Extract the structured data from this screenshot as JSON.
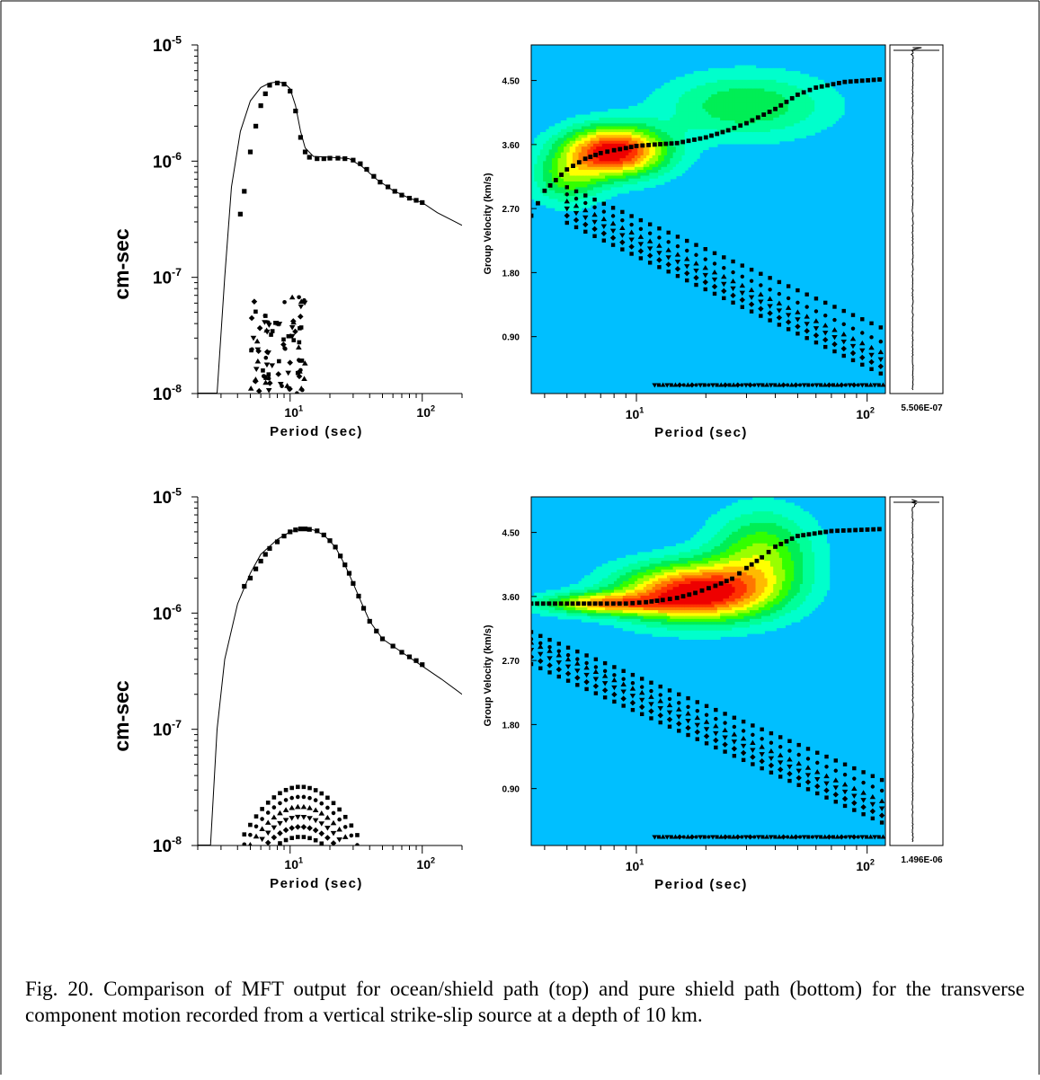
{
  "figure": {
    "caption": "Fig. 20. Comparison of MFT output for ocean/shield path (top) and pure shield path (bottom) for the transverse component motion recorded from a vertical strike-slip source at a depth of 10 km."
  },
  "colors": {
    "background": "#00bfff",
    "contour_levels": [
      "#00ffcc",
      "#00ff99",
      "#00ee55",
      "#33ff00",
      "#99ff00",
      "#ffff00",
      "#ffbb00",
      "#ff7700",
      "#ff3300",
      "#ee0000"
    ]
  },
  "chart_data": [
    {
      "panel": "top-left",
      "type": "scatter",
      "xlabel": "Period (sec)",
      "ylabel": "cm-sec",
      "xscale": "log",
      "yscale": "log",
      "xlim": [
        2,
        200
      ],
      "ylim": [
        1e-08,
        1e-05
      ],
      "xticks": [
        {
          "v": 10,
          "base": "10",
          "exp": "1"
        },
        {
          "v": 100,
          "base": "10",
          "exp": "2"
        }
      ],
      "yticks": [
        {
          "v": 1e-05,
          "base": "10",
          "exp": "-5"
        },
        {
          "v": 1e-06,
          "base": "10",
          "exp": "-6"
        },
        {
          "v": 1e-07,
          "base": "10",
          "exp": "-7"
        },
        {
          "v": 1e-08,
          "base": "10",
          "exp": "-8"
        }
      ],
      "curve": [
        [
          2.8,
          1e-08
        ],
        [
          3.2,
          1e-07
        ],
        [
          3.6,
          6e-07
        ],
        [
          4.2,
          1.8e-06
        ],
        [
          5,
          3.3e-06
        ],
        [
          6,
          4.3e-06
        ],
        [
          7,
          4.7e-06
        ],
        [
          8,
          4.8e-06
        ],
        [
          9,
          4.7e-06
        ],
        [
          10,
          4.2e-06
        ],
        [
          11,
          3e-06
        ],
        [
          12,
          1.8e-06
        ],
        [
          13,
          1.3e-06
        ],
        [
          15,
          1.1e-06
        ],
        [
          20,
          1.08e-06
        ],
        [
          28,
          1.05e-06
        ],
        [
          35,
          9e-07
        ],
        [
          45,
          7e-07
        ],
        [
          60,
          5.6e-07
        ],
        [
          80,
          4.8e-07
        ],
        [
          100,
          4.4e-07
        ],
        [
          130,
          3.6e-07
        ],
        [
          200,
          2.8e-07
        ]
      ],
      "fundamental": [
        [
          4.2,
          3.5e-07
        ],
        [
          4.5,
          5.5e-07
        ],
        [
          5,
          1.2e-06
        ],
        [
          5.5,
          2e-06
        ],
        [
          6,
          3e-06
        ],
        [
          6.5,
          3.8e-06
        ],
        [
          7,
          4.5e-06
        ],
        [
          8,
          4.7e-06
        ],
        [
          9,
          4.6e-06
        ],
        [
          10,
          4e-06
        ],
        [
          11,
          2.7e-06
        ],
        [
          12,
          1.6e-06
        ],
        [
          13,
          1.2e-06
        ],
        [
          14,
          1.08e-06
        ],
        [
          16,
          1.05e-06
        ],
        [
          18,
          1.05e-06
        ],
        [
          20,
          1.06e-06
        ],
        [
          23,
          1.06e-06
        ],
        [
          26,
          1.05e-06
        ],
        [
          30,
          1.02e-06
        ],
        [
          34,
          9.5e-07
        ],
        [
          38,
          8.5e-07
        ],
        [
          43,
          7.4e-07
        ],
        [
          48,
          6.6e-07
        ],
        [
          55,
          6e-07
        ],
        [
          62,
          5.5e-07
        ],
        [
          70,
          5.1e-07
        ],
        [
          80,
          4.8e-07
        ],
        [
          90,
          4.6e-07
        ],
        [
          100,
          4.4e-07
        ]
      ],
      "overtones": {
        "xrange": [
          5,
          13
        ],
        "ymax": 7e-08,
        "ymin": 1e-08,
        "count": 90
      }
    },
    {
      "panel": "top-right",
      "type": "heatmap",
      "xlabel": "Period (sec)",
      "ylabel": "Group Velocity (km/s)",
      "xscale": "log",
      "xlim": [
        3.5,
        120
      ],
      "ylim": [
        0.1,
        5.0
      ],
      "xticks": [
        {
          "v": 10,
          "base": "10",
          "exp": "1"
        },
        {
          "v": 100,
          "base": "10",
          "exp": "2"
        }
      ],
      "yticks": [
        {
          "v": 0.9,
          "label": "0.90"
        },
        {
          "v": 1.8,
          "label": "1.80"
        },
        {
          "v": 2.7,
          "label": "2.70"
        },
        {
          "v": 3.6,
          "label": "3.60"
        },
        {
          "v": 4.5,
          "label": "4.50"
        }
      ],
      "seismogram_label": "5.506E-07",
      "dispersion": [
        [
          3.5,
          2.6
        ],
        [
          4,
          2.95
        ],
        [
          5,
          3.25
        ],
        [
          6,
          3.4
        ],
        [
          7,
          3.48
        ],
        [
          8,
          3.52
        ],
        [
          9,
          3.55
        ],
        [
          10,
          3.58
        ],
        [
          12,
          3.6
        ],
        [
          15,
          3.62
        ],
        [
          20,
          3.7
        ],
        [
          25,
          3.8
        ],
        [
          30,
          3.9
        ],
        [
          40,
          4.1
        ],
        [
          50,
          4.3
        ],
        [
          60,
          4.4
        ],
        [
          80,
          4.48
        ],
        [
          120,
          4.52
        ]
      ],
      "energy_peaks": [
        {
          "p": 8,
          "v": 3.5,
          "amp": 1.0,
          "sp": 0.22,
          "sv": 0.35
        },
        {
          "p": 30,
          "v": 4.15,
          "amp": 0.35,
          "sp": 0.35,
          "sv": 0.45
        },
        {
          "p": 5,
          "v": 3.1,
          "amp": 0.35,
          "sp": 0.15,
          "sv": 0.35
        }
      ],
      "overtone_lines": [
        {
          "p0": 5,
          "v0": 3.0,
          "p1": 120,
          "v1": 1.0
        },
        {
          "p0": 5,
          "v0": 2.9,
          "p1": 120,
          "v1": 0.8
        },
        {
          "p0": 5,
          "v0": 2.8,
          "p1": 120,
          "v1": 0.65
        },
        {
          "p0": 5,
          "v0": 2.7,
          "p1": 120,
          "v1": 0.55
        },
        {
          "p0": 5,
          "v0": 2.6,
          "p1": 120,
          "v1": 0.45
        },
        {
          "p0": 5,
          "v0": 2.5,
          "p1": 120,
          "v1": 0.35
        }
      ],
      "baseline_v": 0.22
    },
    {
      "panel": "bottom-left",
      "type": "scatter",
      "xlabel": "Period (sec)",
      "ylabel": "cm-sec",
      "xscale": "log",
      "yscale": "log",
      "xlim": [
        2,
        200
      ],
      "ylim": [
        1e-08,
        1e-05
      ],
      "xticks": [
        {
          "v": 10,
          "base": "10",
          "exp": "1"
        },
        {
          "v": 100,
          "base": "10",
          "exp": "2"
        }
      ],
      "yticks": [
        {
          "v": 1e-05,
          "base": "10",
          "exp": "-5"
        },
        {
          "v": 1e-06,
          "base": "10",
          "exp": "-6"
        },
        {
          "v": 1e-07,
          "base": "10",
          "exp": "-7"
        },
        {
          "v": 1e-08,
          "base": "10",
          "exp": "-8"
        }
      ],
      "curve": [
        [
          2.5,
          1e-08
        ],
        [
          2.8,
          1e-07
        ],
        [
          3.2,
          4e-07
        ],
        [
          4,
          1.2e-06
        ],
        [
          5,
          2.2e-06
        ],
        [
          6,
          3.2e-06
        ],
        [
          8,
          4.3e-06
        ],
        [
          10,
          5e-06
        ],
        [
          12,
          5.3e-06
        ],
        [
          15,
          5.2e-06
        ],
        [
          18,
          4.7e-06
        ],
        [
          22,
          3.7e-06
        ],
        [
          26,
          2.6e-06
        ],
        [
          30,
          1.8e-06
        ],
        [
          35,
          1.2e-06
        ],
        [
          40,
          8.5e-07
        ],
        [
          50,
          6e-07
        ],
        [
          70,
          4.6e-07
        ],
        [
          100,
          3.5e-07
        ],
        [
          140,
          2.7e-07
        ],
        [
          200,
          2e-07
        ]
      ],
      "fundamental": [
        [
          4.5,
          1.7e-06
        ],
        [
          5,
          2e-06
        ],
        [
          5.5,
          2.4e-06
        ],
        [
          6,
          2.8e-06
        ],
        [
          6.5,
          3.2e-06
        ],
        [
          7,
          3.6e-06
        ],
        [
          8,
          4.1e-06
        ],
        [
          9,
          4.6e-06
        ],
        [
          10,
          5e-06
        ],
        [
          11,
          5.2e-06
        ],
        [
          12,
          5.3e-06
        ],
        [
          13,
          5.3e-06
        ],
        [
          14,
          5.25e-06
        ],
        [
          16,
          5.1e-06
        ],
        [
          18,
          4.7e-06
        ],
        [
          20,
          4.2e-06
        ],
        [
          22,
          3.7e-06
        ],
        [
          24,
          3.1e-06
        ],
        [
          26,
          2.6e-06
        ],
        [
          28,
          2.2e-06
        ],
        [
          30,
          1.8e-06
        ],
        [
          33,
          1.4e-06
        ],
        [
          36,
          1.1e-06
        ],
        [
          40,
          8.5e-07
        ],
        [
          45,
          7e-07
        ],
        [
          50,
          6e-07
        ],
        [
          60,
          5.2e-07
        ],
        [
          70,
          4.6e-07
        ],
        [
          80,
          4.2e-07
        ],
        [
          90,
          3.9e-07
        ],
        [
          100,
          3.6e-07
        ]
      ],
      "overtones": {
        "xrange": [
          4.5,
          50
        ],
        "ymax": 3.2e-08,
        "ymin": 1e-08,
        "count": 8,
        "peak": 12
      }
    },
    {
      "panel": "bottom-right",
      "type": "heatmap",
      "xlabel": "Period (sec)",
      "ylabel": "Group Velocity (km/s)",
      "xscale": "log",
      "xlim": [
        3.5,
        120
      ],
      "ylim": [
        0.1,
        5.0
      ],
      "xticks": [
        {
          "v": 10,
          "base": "10",
          "exp": "1"
        },
        {
          "v": 100,
          "base": "10",
          "exp": "2"
        }
      ],
      "yticks": [
        {
          "v": 0.9,
          "label": "0.90"
        },
        {
          "v": 1.8,
          "label": "1.80"
        },
        {
          "v": 2.7,
          "label": "2.70"
        },
        {
          "v": 3.6,
          "label": "3.60"
        },
        {
          "v": 4.5,
          "label": "4.50"
        }
      ],
      "seismogram_label": "1.496E-06",
      "dispersion": [
        [
          3.5,
          3.5
        ],
        [
          5,
          3.5
        ],
        [
          7,
          3.5
        ],
        [
          9,
          3.5
        ],
        [
          11,
          3.52
        ],
        [
          13,
          3.55
        ],
        [
          15,
          3.58
        ],
        [
          18,
          3.65
        ],
        [
          22,
          3.75
        ],
        [
          26,
          3.85
        ],
        [
          30,
          4.0
        ],
        [
          35,
          4.15
        ],
        [
          40,
          4.3
        ],
        [
          50,
          4.45
        ],
        [
          70,
          4.52
        ],
        [
          120,
          4.55
        ]
      ],
      "energy_peaks": [
        {
          "p": 18,
          "v": 3.65,
          "amp": 1.0,
          "sp": 0.32,
          "sv": 0.4
        },
        {
          "p": 7,
          "v": 3.5,
          "amp": 0.6,
          "sp": 0.25,
          "sv": 0.15
        },
        {
          "p": 35,
          "v": 4.2,
          "amp": 0.45,
          "sp": 0.22,
          "sv": 0.6
        }
      ],
      "overtone_lines": [
        {
          "p0": 3.5,
          "v0": 3.1,
          "p1": 120,
          "v1": 1.0
        },
        {
          "p0": 3.5,
          "v0": 3.0,
          "p1": 120,
          "v1": 0.85
        },
        {
          "p0": 3.5,
          "v0": 2.95,
          "p1": 120,
          "v1": 0.7
        },
        {
          "p0": 3.5,
          "v0": 2.85,
          "p1": 120,
          "v1": 0.6
        },
        {
          "p0": 3.5,
          "v0": 2.75,
          "p1": 120,
          "v1": 0.5
        },
        {
          "p0": 3.5,
          "v0": 2.65,
          "p1": 120,
          "v1": 0.4
        }
      ],
      "baseline_v": 0.22
    }
  ]
}
